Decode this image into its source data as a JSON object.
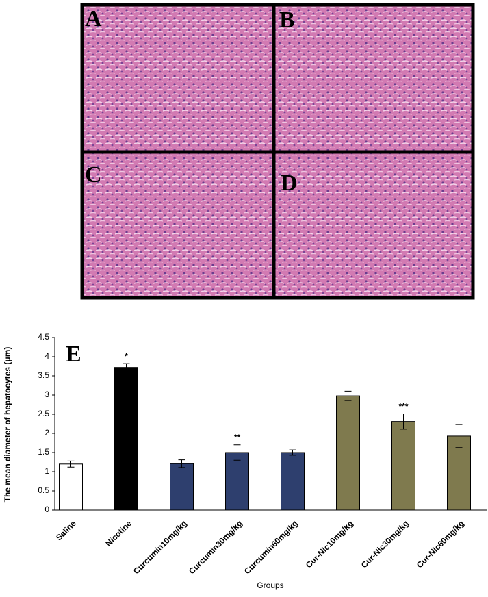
{
  "panels": [
    "A",
    "B",
    "C",
    "D"
  ],
  "chart_data": {
    "type": "bar",
    "label": "E",
    "y_label": "The mean diameter of hepatocytes (μm)",
    "x_label": "Groups",
    "categories": [
      "Saline",
      "Nicotine",
      "Curcumin10mg/kg",
      "Curcumin30mg/kg",
      "Curcumin60mg/kg",
      "Cur-Nic10mg/kg",
      "Cur-Nic30mg/kg",
      "Cur-Nic60mg/kg"
    ],
    "values": [
      1.2,
      3.72,
      1.21,
      1.5,
      1.5,
      2.98,
      2.31,
      1.93
    ],
    "errors": [
      0.08,
      0.1,
      0.1,
      0.2,
      0.07,
      0.12,
      0.2,
      0.3
    ],
    "significance": [
      null,
      "*",
      null,
      "**",
      null,
      null,
      "***",
      null
    ],
    "colors": [
      "#ffffff",
      "#000000",
      "#2e3f6e",
      "#2e3f6e",
      "#2e3f6e",
      "#7f7a4e",
      "#7f7a4e",
      "#7f7a4e"
    ],
    "ylim": [
      0,
      4.5
    ],
    "yticks": [
      0,
      0.5,
      1,
      1.5,
      2,
      2.5,
      3,
      3.5,
      4,
      4.5
    ]
  }
}
